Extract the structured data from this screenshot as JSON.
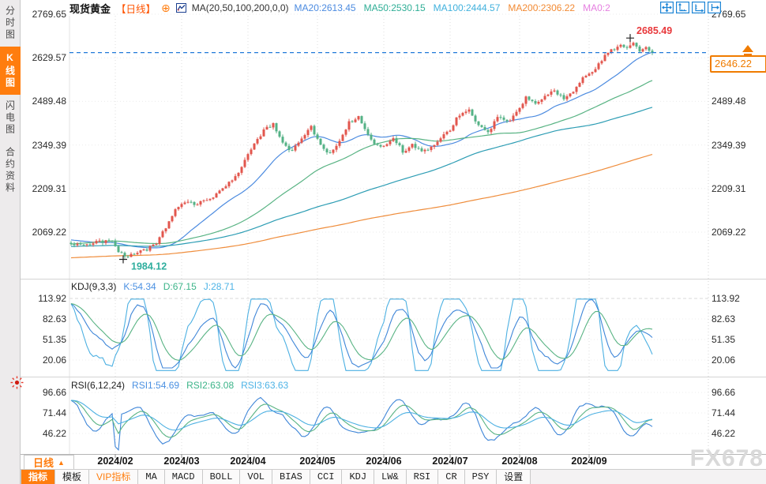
{
  "header": {
    "title": "现货黄金",
    "period_tag": "【日线】",
    "add_icon": "⊕",
    "ma_function": "MA(20,50,100,200,0,0)",
    "ma_values": [
      {
        "label": "MA20:2613.45",
        "color": "#4c8be0"
      },
      {
        "label": "MA50:2530.15",
        "color": "#2fae96"
      },
      {
        "label": "MA100:2444.57",
        "color": "#41b1dd"
      },
      {
        "label": "MA200:2306.22",
        "color": "#f28a33"
      },
      {
        "label": "MA0:2",
        "color": "#e57fe0"
      }
    ],
    "tools": [
      "crosshair-move",
      "zoom-vertical-axis",
      "zoom-horizontal-axis",
      "pan-right"
    ]
  },
  "sidebar": {
    "tabs": [
      {
        "label": "分时图",
        "active": false
      },
      {
        "label": "K线图",
        "active": true
      },
      {
        "label": "闪电图",
        "active": false
      },
      {
        "label": "合约资料",
        "active": false
      }
    ]
  },
  "panels": {
    "kdj_label": "KDJ(9,3,3)",
    "kdj_values": [
      {
        "label": "K:54.34",
        "color": "#4a90e2"
      },
      {
        "label": "D:67.15",
        "color": "#3cb489"
      },
      {
        "label": "J:28.71",
        "color": "#4db3e6"
      }
    ],
    "rsi_label": "RSI(6,12,24)",
    "rsi_values": [
      {
        "label": "RSI1:54.69",
        "color": "#4a90e2"
      },
      {
        "label": "RSI2:63.08",
        "color": "#3cb489"
      },
      {
        "label": "RSI3:63.63",
        "color": "#4db3e6"
      }
    ]
  },
  "xaxis": {
    "period_button": "日线",
    "period_arrow": "▲",
    "months": [
      "2024/02",
      "2024/03",
      "2024/04",
      "2024/05",
      "2024/06",
      "2024/07",
      "2024/08",
      "2024/09"
    ]
  },
  "toolbar": {
    "tabs": [
      {
        "label": "指标",
        "state": "active"
      },
      {
        "label": "模板",
        "state": "cjk"
      },
      {
        "label": "VIP指标",
        "state": "vip"
      },
      {
        "label": "MA",
        "state": "normal"
      },
      {
        "label": "MACD",
        "state": "normal"
      },
      {
        "label": "BOLL",
        "state": "normal"
      },
      {
        "label": "VOL",
        "state": "normal"
      },
      {
        "label": "BIAS",
        "state": "normal"
      },
      {
        "label": "CCI",
        "state": "normal"
      },
      {
        "label": "KDJ",
        "state": "normal"
      },
      {
        "label": "LW&",
        "state": "normal"
      },
      {
        "label": "RSI",
        "state": "normal"
      },
      {
        "label": "CR",
        "state": "normal"
      },
      {
        "label": "PSY",
        "state": "normal"
      },
      {
        "label": "设置",
        "state": "cjk"
      }
    ]
  },
  "watermark": "FX678",
  "colors": {
    "candle_up": "#e2564d",
    "candle_down": "#54b286",
    "ma20": "#4c8be0",
    "ma50": "#58b383",
    "ma100": "#2d9db4",
    "ma200": "#ef8d3c",
    "kdj_k": "#3f86d8",
    "kdj_d": "#58b383",
    "kdj_j": "#4cb0e2",
    "price_line": "#2079d8",
    "price_box": "#f07c00",
    "high_label": "#e8383b",
    "low_label": "#2fae9e",
    "grid": "#dcdcdc",
    "separator": "#d4d4d4",
    "accent": "#ff7d0e"
  },
  "chart_data": {
    "type": "candlestick",
    "symbol": "现货黄金",
    "period": "日线",
    "candle_count": 185,
    "y_ticks_main": [
      2769.65,
      2629.57,
      2489.48,
      2349.39,
      2209.31,
      2069.22
    ],
    "last_price": 2646.22,
    "price_high": {
      "value": 2685.49,
      "index": 177
    },
    "price_low": {
      "value": 1984.12,
      "index": 17
    },
    "month_labels": [
      "2024/02",
      "2024/03",
      "2024/04",
      "2024/05",
      "2024/06",
      "2024/07",
      "2024/08",
      "2024/09"
    ],
    "month_start_indices": [
      14,
      35,
      56,
      78,
      99,
      120,
      142,
      164
    ],
    "close_anchors": [
      [
        0,
        2032
      ],
      [
        5,
        2028
      ],
      [
        9,
        2040
      ],
      [
        13,
        2038
      ],
      [
        15,
        2010
      ],
      [
        17,
        1988
      ],
      [
        19,
        1996
      ],
      [
        23,
        2012
      ],
      [
        27,
        2030
      ],
      [
        30,
        2085
      ],
      [
        33,
        2142
      ],
      [
        36,
        2166
      ],
      [
        40,
        2160
      ],
      [
        44,
        2178
      ],
      [
        48,
        2212
      ],
      [
        52,
        2248
      ],
      [
        55,
        2300
      ],
      [
        58,
        2350
      ],
      [
        61,
        2395
      ],
      [
        64,
        2420
      ],
      [
        67,
        2350
      ],
      [
        70,
        2330
      ],
      [
        73,
        2372
      ],
      [
        76,
        2410
      ],
      [
        79,
        2348
      ],
      [
        82,
        2320
      ],
      [
        85,
        2365
      ],
      [
        88,
        2420
      ],
      [
        91,
        2440
      ],
      [
        93,
        2400
      ],
      [
        96,
        2352
      ],
      [
        99,
        2345
      ],
      [
        102,
        2368
      ],
      [
        105,
        2330
      ],
      [
        108,
        2352
      ],
      [
        111,
        2325
      ],
      [
        114,
        2340
      ],
      [
        117,
        2372
      ],
      [
        120,
        2398
      ],
      [
        123,
        2448
      ],
      [
        126,
        2462
      ],
      [
        129,
        2415
      ],
      [
        132,
        2388
      ],
      [
        135,
        2440
      ],
      [
        138,
        2425
      ],
      [
        141,
        2452
      ],
      [
        144,
        2500
      ],
      [
        147,
        2478
      ],
      [
        150,
        2505
      ],
      [
        153,
        2528
      ],
      [
        156,
        2495
      ],
      [
        159,
        2522
      ],
      [
        162,
        2562
      ],
      [
        165,
        2585
      ],
      [
        168,
        2622
      ],
      [
        171,
        2655
      ],
      [
        174,
        2670
      ],
      [
        176,
        2662
      ],
      [
        178,
        2678
      ],
      [
        180,
        2655
      ],
      [
        182,
        2662
      ],
      [
        184,
        2646.22
      ]
    ],
    "prehistory_anchors": [
      [
        -210,
        1932
      ],
      [
        -180,
        1958
      ],
      [
        -160,
        1925
      ],
      [
        -140,
        1945
      ],
      [
        -120,
        1958
      ],
      [
        -100,
        1992
      ],
      [
        -80,
        2035
      ],
      [
        -60,
        2010
      ],
      [
        -45,
        1988
      ],
      [
        -30,
        2042
      ],
      [
        -15,
        2052
      ],
      [
        -1,
        2035
      ]
    ],
    "ma_windows": [
      20,
      50,
      100,
      200
    ],
    "ma_current": {
      "MA20": 2613.45,
      "MA50": 2530.15,
      "MA100": 2444.57,
      "MA200": 2306.22
    },
    "kdj": {
      "params": "(9,3,3)",
      "k": 54.34,
      "d": 67.15,
      "j": 28.71,
      "y_ticks": [
        113.92,
        82.63,
        51.35,
        20.06
      ]
    },
    "rsi": {
      "params": "(6,12,24)",
      "rsi1": 54.69,
      "rsi2": 63.08,
      "rsi3": 63.63,
      "y_ticks": [
        96.66,
        71.44,
        46.22
      ]
    }
  }
}
